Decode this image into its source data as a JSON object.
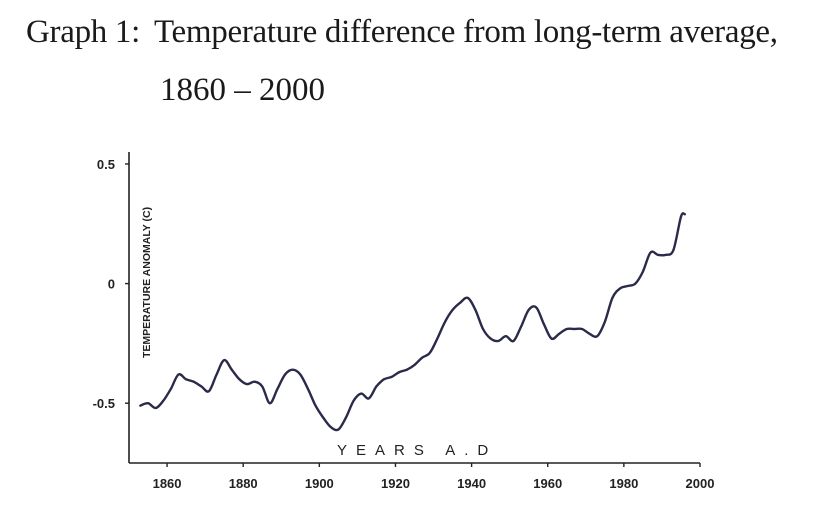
{
  "header": {
    "graph_number": "Graph 1:",
    "title": "Temperature difference from long-term average,",
    "subtitle": "1860 – 2000"
  },
  "chart_data": {
    "type": "line",
    "title": "Temperature difference from long-term average, 1860 – 2000",
    "xlabel": "YEARS A.D",
    "ylabel": "TEMPERATURE ANOMALY (C)",
    "xlim": [
      1850,
      2000
    ],
    "ylim": [
      -0.75,
      0.55
    ],
    "x_ticks": [
      1860,
      1880,
      1900,
      1920,
      1940,
      1960,
      1980,
      2000
    ],
    "x_tick_labels": [
      "1860",
      "1880",
      "1900",
      "1920",
      "1940",
      "1960",
      "1980",
      "2000"
    ],
    "y_ticks": [
      0.5,
      0,
      -0.5
    ],
    "y_tick_labels": [
      "0.5",
      "0",
      "-0.5"
    ],
    "grid": false,
    "line_color": "#2a2a4a",
    "series": [
      {
        "name": "Temperature anomaly",
        "x": [
          1853,
          1855,
          1857,
          1859,
          1861,
          1863,
          1865,
          1867,
          1869,
          1871,
          1873,
          1875,
          1877,
          1879,
          1881,
          1883,
          1885,
          1887,
          1889,
          1891,
          1893,
          1895,
          1897,
          1899,
          1901,
          1903,
          1905,
          1907,
          1909,
          1911,
          1913,
          1915,
          1917,
          1919,
          1921,
          1923,
          1925,
          1927,
          1929,
          1931,
          1933,
          1935,
          1937,
          1939,
          1941,
          1943,
          1945,
          1947,
          1949,
          1951,
          1953,
          1955,
          1957,
          1959,
          1961,
          1963,
          1965,
          1967,
          1969,
          1971,
          1973,
          1975,
          1977,
          1979,
          1981,
          1983,
          1985,
          1987,
          1989,
          1991,
          1993,
          1995,
          1996
        ],
        "values": [
          -0.51,
          -0.5,
          -0.52,
          -0.49,
          -0.44,
          -0.38,
          -0.4,
          -0.41,
          -0.43,
          -0.45,
          -0.38,
          -0.32,
          -0.36,
          -0.4,
          -0.42,
          -0.41,
          -0.43,
          -0.5,
          -0.44,
          -0.38,
          -0.36,
          -0.38,
          -0.44,
          -0.51,
          -0.56,
          -0.6,
          -0.61,
          -0.56,
          -0.49,
          -0.46,
          -0.48,
          -0.43,
          -0.4,
          -0.39,
          -0.37,
          -0.36,
          -0.34,
          -0.31,
          -0.29,
          -0.23,
          -0.16,
          -0.11,
          -0.08,
          -0.06,
          -0.11,
          -0.19,
          -0.23,
          -0.24,
          -0.22,
          -0.24,
          -0.18,
          -0.11,
          -0.1,
          -0.17,
          -0.23,
          -0.21,
          -0.19,
          -0.19,
          -0.19,
          -0.21,
          -0.22,
          -0.16,
          -0.06,
          -0.02,
          -0.01,
          0.0,
          0.05,
          0.13,
          0.12,
          0.12,
          0.14,
          0.28,
          0.29
        ]
      }
    ]
  }
}
